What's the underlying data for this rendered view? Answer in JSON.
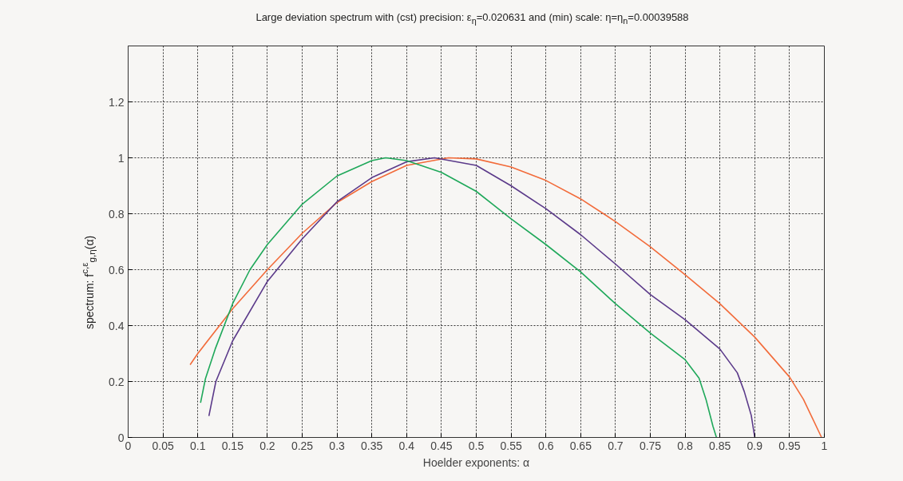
{
  "chart_data": {
    "type": "line",
    "title": "Large deviation spectrum with (cst) precision: ε$_{η}$=0.020631 and (min) scale: η=η$_{n}$=0.00039588",
    "xlabel": "Hoelder exponents: α",
    "ylabel": "spectrum: f$^{c,ε}$$_{g,η}$(α)",
    "xlim": [
      0,
      1
    ],
    "ylim": [
      0,
      1.4
    ],
    "xticks": [
      0,
      0.05,
      0.1,
      0.15,
      0.2,
      0.25,
      0.3,
      0.35,
      0.4,
      0.45,
      0.5,
      0.55,
      0.6,
      0.65,
      0.7,
      0.75,
      0.8,
      0.85,
      0.9,
      0.95,
      1
    ],
    "yticks": [
      0,
      0.2,
      0.4,
      0.6,
      0.8,
      1,
      1.2
    ],
    "grid": true,
    "line_style": "solid",
    "series": [
      {
        "color": "#f26b3a",
        "x": [
          0.089,
          0.1,
          0.15,
          0.2,
          0.25,
          0.3,
          0.35,
          0.4,
          0.46,
          0.5,
          0.55,
          0.6,
          0.65,
          0.7,
          0.75,
          0.8,
          0.85,
          0.9,
          0.95,
          0.97,
          0.996
        ],
        "values": [
          0.26,
          0.3,
          0.46,
          0.6,
          0.73,
          0.84,
          0.915,
          0.973,
          1.0,
          0.996,
          0.967,
          0.919,
          0.853,
          0.772,
          0.682,
          0.582,
          0.478,
          0.359,
          0.216,
          0.136,
          0.0
        ]
      },
      {
        "color": "#5b3a8a",
        "x": [
          0.116,
          0.126,
          0.15,
          0.2,
          0.25,
          0.3,
          0.35,
          0.4,
          0.44,
          0.5,
          0.55,
          0.6,
          0.65,
          0.7,
          0.75,
          0.8,
          0.85,
          0.875,
          0.885,
          0.895,
          0.9
        ],
        "values": [
          0.077,
          0.2,
          0.345,
          0.558,
          0.71,
          0.843,
          0.929,
          0.986,
          1.0,
          0.973,
          0.9,
          0.818,
          0.725,
          0.62,
          0.511,
          0.421,
          0.316,
          0.231,
          0.164,
          0.079,
          0.0
        ]
      },
      {
        "color": "#1fa85a",
        "x": [
          0.104,
          0.111,
          0.125,
          0.15,
          0.175,
          0.2,
          0.25,
          0.3,
          0.35,
          0.37,
          0.4,
          0.45,
          0.5,
          0.55,
          0.6,
          0.65,
          0.7,
          0.75,
          0.8,
          0.82,
          0.83,
          0.84,
          0.845
        ],
        "values": [
          0.124,
          0.21,
          0.316,
          0.478,
          0.6,
          0.69,
          0.834,
          0.935,
          0.99,
          1.0,
          0.99,
          0.948,
          0.88,
          0.782,
          0.69,
          0.592,
          0.478,
          0.373,
          0.278,
          0.212,
          0.136,
          0.04,
          0.0
        ]
      }
    ]
  }
}
